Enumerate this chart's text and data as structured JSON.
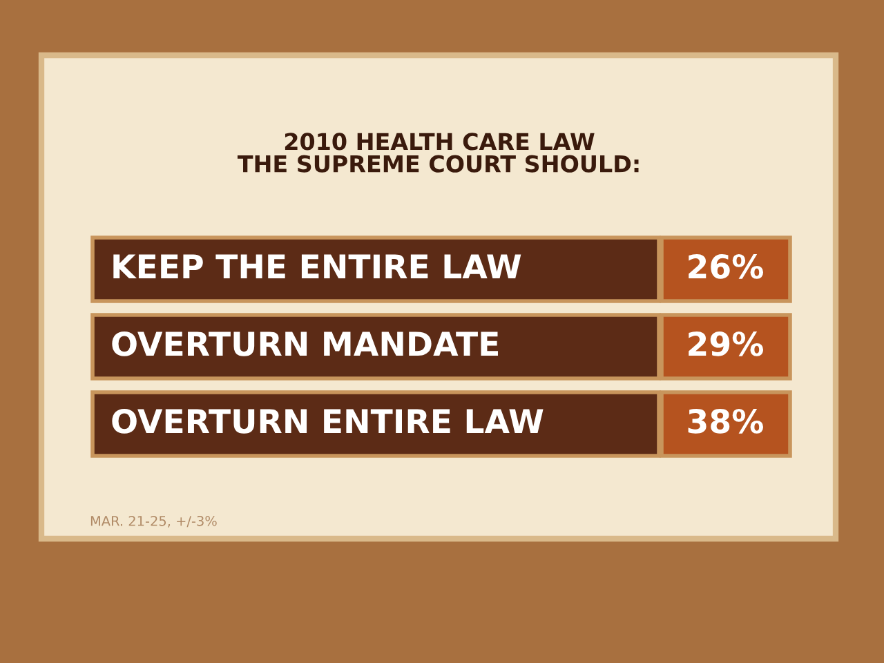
{
  "chart_data": {
    "type": "other",
    "title": "2010 HEALTH CARE LAW\nTHE SUPREME COURT SHOULD:",
    "categories": [
      "KEEP THE ENTIRE LAW",
      "OVERTURN MANDATE",
      "OVERTURN ENTIRE LAW"
    ],
    "values": [
      26,
      29,
      38
    ],
    "value_labels": [
      "26%",
      "29%",
      "38%"
    ],
    "color": "#b5531f",
    "annotations": [
      "MAR. 21-25, +/-3%"
    ]
  }
}
